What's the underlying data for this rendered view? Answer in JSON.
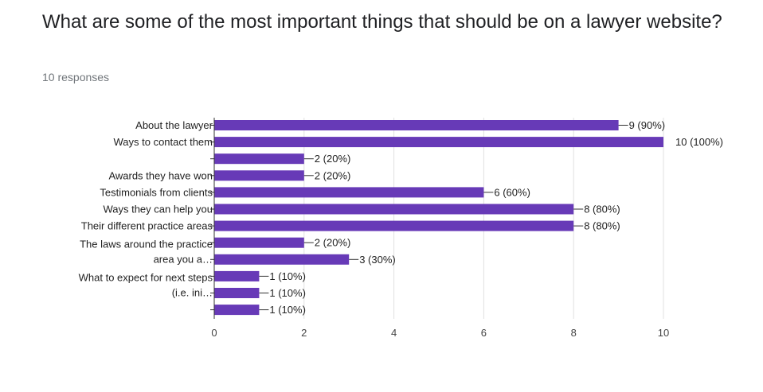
{
  "question": {
    "title": "What are some of the most important things that should be on a lawyer website?",
    "responses_label": "10 responses"
  },
  "colors": {
    "bar": "#673ab7",
    "grid": "#e0e0e0",
    "axis": "#333333",
    "label_text": "#222222",
    "tick_text": "#444444"
  },
  "chart_data": {
    "type": "bar",
    "orientation": "horizontal",
    "xlim": [
      0,
      10
    ],
    "x_ticks": [
      0,
      2,
      4,
      6,
      8,
      10
    ],
    "grid": true,
    "category_labels": [
      {
        "text": "About the lawyer",
        "rows": [
          0
        ]
      },
      {
        "text": "Ways to contact them",
        "rows": [
          1
        ]
      },
      {
        "text": "Awards they have won",
        "rows": [
          3
        ]
      },
      {
        "text": "Testimonials from clients",
        "rows": [
          4
        ]
      },
      {
        "text": "Ways they can help you",
        "rows": [
          5
        ]
      },
      {
        "text": "Their different practice areas",
        "rows": [
          6
        ]
      },
      {
        "text": "The laws around the practice",
        "rows": [
          7,
          8
        ],
        "line": 0
      },
      {
        "text": "area you a…",
        "rows": [
          7,
          8
        ],
        "line": 1
      },
      {
        "text": "What to expect for next steps",
        "rows": [
          9,
          10
        ],
        "line": 0
      },
      {
        "text": "(i.e. ini…",
        "rows": [
          9,
          10
        ],
        "line": 1
      }
    ],
    "values": [
      9,
      10,
      2,
      2,
      6,
      8,
      8,
      2,
      3,
      1,
      1,
      1
    ],
    "data_labels": [
      "9 (90%)",
      "10 (100%)",
      "2 (20%)",
      "2 (20%)",
      "6 (60%)",
      "8 (80%)",
      "8 (80%)",
      "2 (20%)",
      "3 (30%)",
      "1 (10%)",
      "1 (10%)",
      "1 (10%)"
    ]
  }
}
